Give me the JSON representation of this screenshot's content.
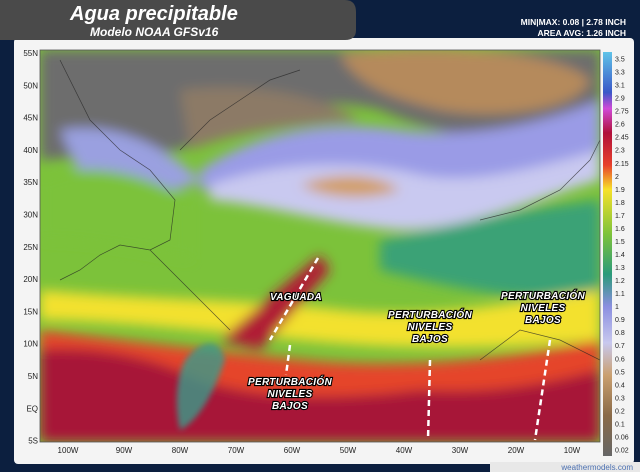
{
  "header": {
    "title": "Agua precipitable",
    "subtitle": "Modelo NOAA GFSv16"
  },
  "stats": {
    "minmax": "MIN|MAX: 0.08 | 2.78 INCH",
    "area_avg": "AREA AVG: 1.26 INCH"
  },
  "lat_labels": [
    "55N",
    "50N",
    "45N",
    "40N",
    "35N",
    "30N",
    "25N",
    "20N",
    "15N",
    "10N",
    "5N",
    "EQ",
    "5S"
  ],
  "lon_labels": [
    "100W",
    "90W",
    "80W",
    "70W",
    "60W",
    "50W",
    "40W",
    "30W",
    "20W",
    "10W"
  ],
  "colorbar": {
    "ticks": [
      "3.5",
      "3.3",
      "3.1",
      "2.9",
      "2.75",
      "2.6",
      "2.45",
      "2.3",
      "2.15",
      "2",
      "1.9",
      "1.8",
      "1.7",
      "1.6",
      "1.5",
      "1.4",
      "1.3",
      "1.2",
      "1.1",
      "1",
      "0.9",
      "0.8",
      "0.7",
      "0.6",
      "0.5",
      "0.4",
      "0.3",
      "0.2",
      "0.1",
      "0.06",
      "0.02"
    ]
  },
  "annotations": [
    {
      "lines": [
        "VAGUADA"
      ]
    },
    {
      "lines": [
        "PERTURBACIÓN",
        "NIVELES",
        "BAJOS"
      ]
    },
    {
      "lines": [
        "PERTURBACIÓN",
        "NIVELES",
        "BAJOS"
      ]
    },
    {
      "lines": [
        "PERTURBACIÓN",
        "NIVELES",
        "BAJOS"
      ]
    }
  ],
  "watermark": "weathermodels.com"
}
